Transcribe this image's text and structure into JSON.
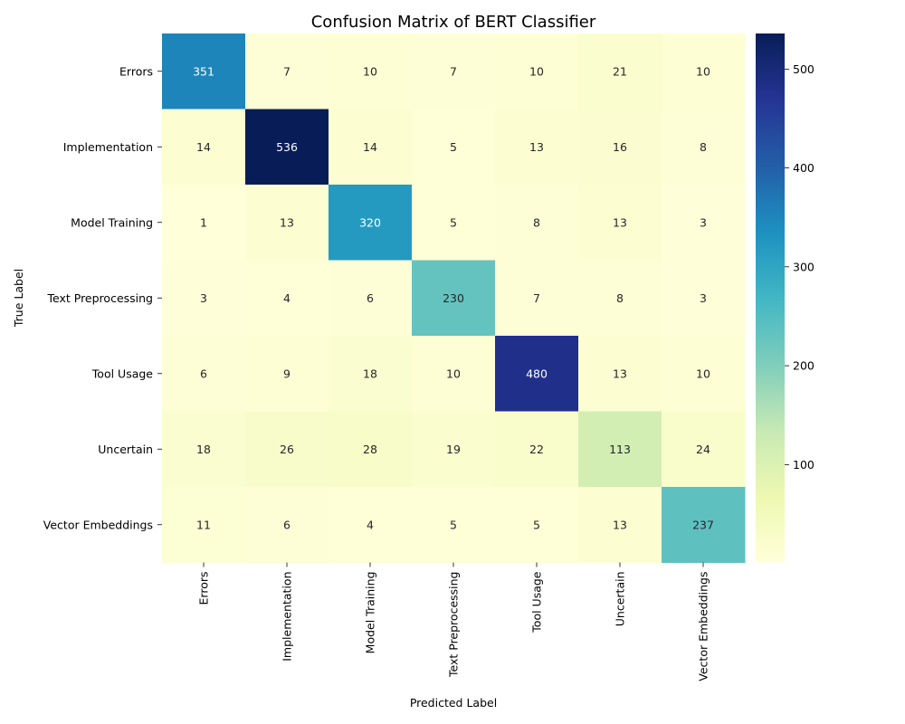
{
  "chart_data": {
    "type": "heatmap",
    "title": "Confusion Matrix of BERT Classifier",
    "xlabel": "Predicted Label",
    "ylabel": "True Label",
    "x_categories": [
      "Errors",
      "Implementation",
      "Model Training",
      "Text Preprocessing",
      "Tool Usage",
      "Uncertain",
      "Vector Embeddings"
    ],
    "y_categories": [
      "Errors",
      "Implementation",
      "Model Training",
      "Text Preprocessing",
      "Tool Usage",
      "Uncertain",
      "Vector Embeddings"
    ],
    "values": [
      [
        351,
        7,
        10,
        7,
        10,
        21,
        10
      ],
      [
        14,
        536,
        14,
        5,
        13,
        16,
        8
      ],
      [
        1,
        13,
        320,
        5,
        8,
        13,
        3
      ],
      [
        3,
        4,
        6,
        230,
        7,
        8,
        3
      ],
      [
        6,
        9,
        18,
        10,
        480,
        13,
        10
      ],
      [
        18,
        26,
        28,
        19,
        22,
        113,
        24
      ],
      [
        11,
        6,
        4,
        5,
        5,
        13,
        237
      ]
    ],
    "colormap": "YlGnBu",
    "color_range": [
      1,
      536
    ],
    "colorbar_ticks": [
      100,
      200,
      300,
      400,
      500
    ],
    "colorbar_tick_labels": [
      "100",
      "200",
      "300",
      "400",
      "500"
    ],
    "grid": false,
    "legend": "colorbar-right"
  }
}
